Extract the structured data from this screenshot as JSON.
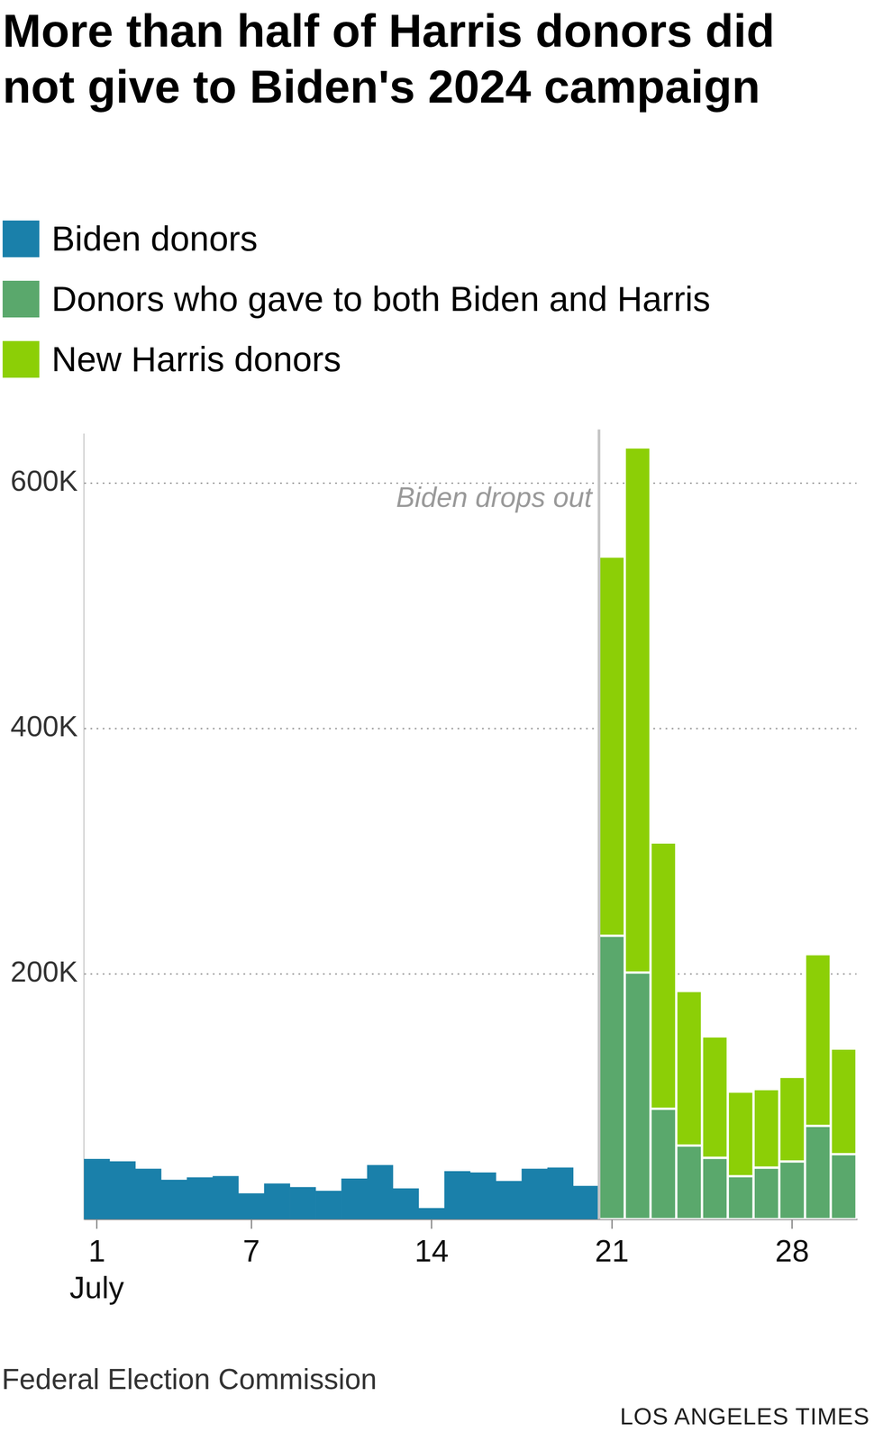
{
  "chart_data": {
    "type": "bar",
    "title": "More than half of Harris donors did not give to Biden's 2024 campaign",
    "categories": [
      "1",
      null,
      null,
      null,
      null,
      null,
      "7",
      null,
      null,
      null,
      null,
      null,
      null,
      "14",
      null,
      null,
      null,
      null,
      null,
      null,
      "21",
      null,
      null,
      null,
      null,
      null,
      null,
      "28",
      null,
      null
    ],
    "xlabel": "July",
    "series": [
      {
        "name": "Biden donors",
        "color": "#1a80aa",
        "values": [
          49000,
          47000,
          41000,
          32000,
          34000,
          35000,
          21000,
          29000,
          26000,
          23000,
          33000,
          44000,
          25000,
          9000,
          39000,
          38000,
          31000,
          41000,
          42000,
          27000,
          null,
          null,
          null,
          null,
          null,
          null,
          null,
          null,
          null,
          null
        ]
      },
      {
        "name": "Donors who gave to both Biden and Harris",
        "color": "#5aa86c",
        "values": [
          null,
          null,
          null,
          null,
          null,
          null,
          null,
          null,
          null,
          null,
          null,
          null,
          null,
          null,
          null,
          null,
          null,
          null,
          null,
          null,
          231000,
          201000,
          90000,
          60000,
          50000,
          35000,
          42000,
          47000,
          76000,
          53000
        ]
      },
      {
        "name": "New Harris donors",
        "color": "#8ccf06",
        "values": [
          null,
          null,
          null,
          null,
          null,
          null,
          null,
          null,
          null,
          null,
          null,
          null,
          null,
          null,
          null,
          null,
          null,
          null,
          null,
          null,
          309000,
          428000,
          217000,
          126000,
          99000,
          69000,
          64000,
          69000,
          140000,
          86000
        ]
      }
    ],
    "stacked": true,
    "ylim": [
      0,
      640000
    ],
    "yticks": [
      {
        "value": 200000,
        "label": "200K"
      },
      {
        "value": 400000,
        "label": "400K"
      },
      {
        "value": 600000,
        "label": "600K"
      }
    ],
    "grid": true,
    "annotations": [
      {
        "text": "Biden drops out",
        "x": "21"
      }
    ],
    "source": "Federal Election Commission",
    "credit": "LOS ANGELES TIMES"
  }
}
